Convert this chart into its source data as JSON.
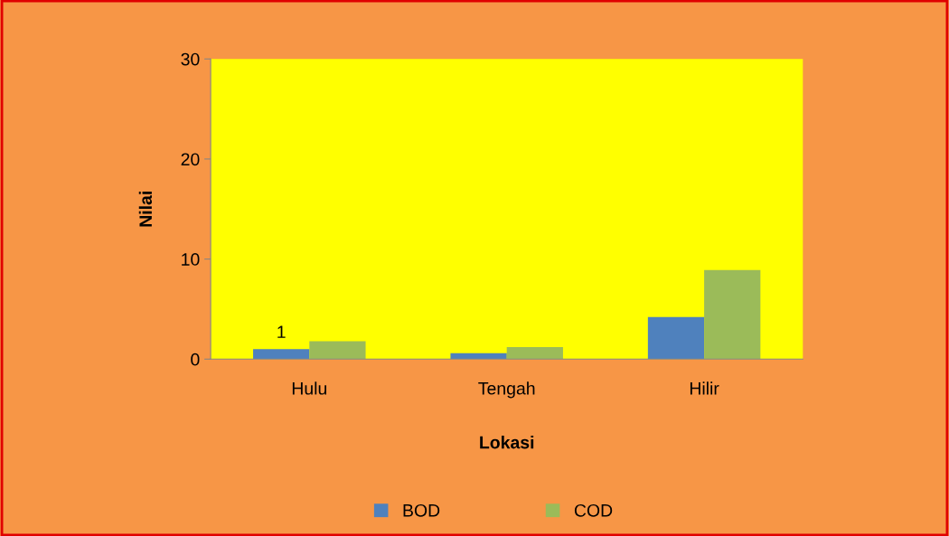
{
  "chart_data": {
    "type": "bar",
    "xlabel": "Lokasi",
    "ylabel": "Nilai",
    "categories": [
      "Hulu",
      "Tengah",
      "Hilir"
    ],
    "series": [
      {
        "name": "BOD",
        "color": "#4f81bd",
        "values": [
          1,
          0.6,
          4.2
        ],
        "value_labels": [
          "1",
          null,
          null
        ]
      },
      {
        "name": "COD",
        "color": "#9bbb59",
        "values": [
          1.8,
          1.2,
          8.9
        ]
      }
    ],
    "ylim": [
      0,
      30
    ],
    "yticks": [
      0,
      10,
      20,
      30
    ],
    "grid": false,
    "legend": "bottom"
  }
}
